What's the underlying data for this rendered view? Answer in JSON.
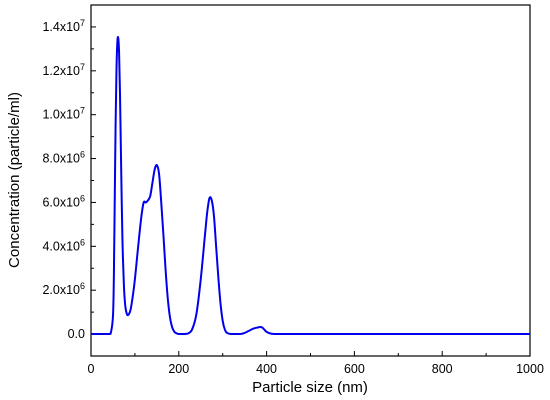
{
  "chart_data": {
    "type": "line",
    "xlabel": "Particle size (nm)",
    "ylabel": "Concentration (particle/ml)",
    "xlim": [
      0,
      1000
    ],
    "ylim": [
      -1000000,
      15000000
    ],
    "x_ticks": [
      0,
      200,
      400,
      600,
      800,
      1000
    ],
    "x_tick_labels": [
      "0",
      "200",
      "400",
      "600",
      "800",
      "1000"
    ],
    "y_ticks": [
      {
        "value": 0,
        "mantissa": "0.0",
        "exp": ""
      },
      {
        "value": 2000000,
        "mantissa": "2.0x10",
        "exp": "6"
      },
      {
        "value": 4000000,
        "mantissa": "4.0x10",
        "exp": "6"
      },
      {
        "value": 6000000,
        "mantissa": "6.0x10",
        "exp": "6"
      },
      {
        "value": 8000000,
        "mantissa": "8.0x10",
        "exp": "6"
      },
      {
        "value": 10000000,
        "mantissa": "1.0x10",
        "exp": "7"
      },
      {
        "value": 12000000,
        "mantissa": "1.2x10",
        "exp": "7"
      },
      {
        "value": 14000000,
        "mantissa": "1.4x10",
        "exp": "7"
      }
    ],
    "line_color": "#0000ee",
    "grid": false,
    "series": [
      {
        "x": [
          0,
          40,
          45,
          50,
          52,
          54,
          56,
          58,
          60,
          62,
          64,
          66,
          68,
          70,
          72,
          75,
          78,
          82,
          86,
          90,
          95,
          100,
          105,
          110,
          115,
          120,
          125,
          130,
          135,
          140,
          145,
          150,
          155,
          160,
          165,
          170,
          175,
          180,
          185,
          190,
          195,
          200,
          210,
          220,
          230,
          240,
          250,
          260,
          265,
          270,
          275,
          280,
          285,
          290,
          295,
          300,
          305,
          310,
          320,
          330,
          340,
          350,
          360,
          370,
          380,
          385,
          390,
          395,
          400,
          410,
          420,
          430,
          500,
          600,
          700,
          800,
          900,
          1000
        ],
        "y": [
          0,
          0,
          50000,
          800000,
          2500000,
          6000000,
          9500000,
          12000000,
          13300000,
          13500000,
          12800000,
          11000000,
          8500000,
          6000000,
          4000000,
          2200000,
          1300000,
          900000,
          900000,
          1100000,
          1700000,
          2500000,
          3500000,
          4500000,
          5400000,
          6000000,
          6000000,
          6100000,
          6300000,
          6900000,
          7500000,
          7700000,
          7300000,
          6000000,
          4500000,
          2900000,
          1600000,
          750000,
          300000,
          100000,
          30000,
          0,
          0,
          20000,
          200000,
          900000,
          2500000,
          4600000,
          5600000,
          6200000,
          6100000,
          5400000,
          4000000,
          2600000,
          1400000,
          600000,
          200000,
          50000,
          0,
          0,
          0,
          50000,
          150000,
          250000,
          300000,
          320000,
          300000,
          200000,
          100000,
          20000,
          0,
          0,
          0,
          0,
          0,
          0,
          0,
          0
        ]
      }
    ]
  }
}
